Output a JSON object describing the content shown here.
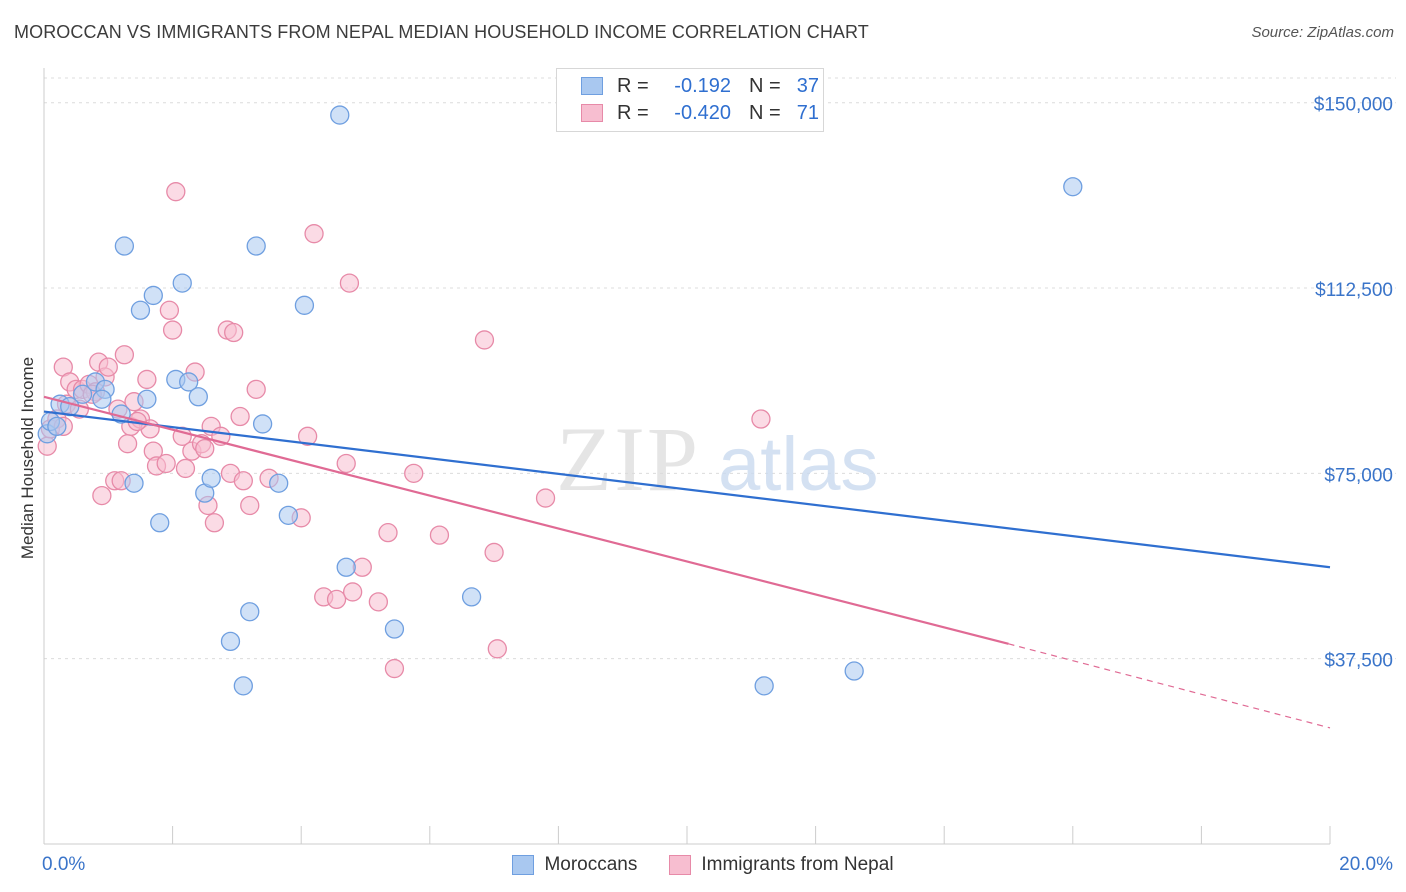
{
  "header": {
    "title": "MOROCCAN VS IMMIGRANTS FROM NEPAL MEDIAN HOUSEHOLD INCOME CORRELATION CHART",
    "source": "Source: ZipAtlas.com"
  },
  "watermark": {
    "part1": "ZIP",
    "part2": "atlas"
  },
  "legend_top": {
    "rows": [
      {
        "r_label": "R =",
        "r_value": "-0.192",
        "n_label": "N =",
        "n_value": "37",
        "color": "#a9c8f0",
        "stroke": "#6f9fe0"
      },
      {
        "r_label": "R =",
        "r_value": "-0.420",
        "n_label": "N =",
        "n_value": "71",
        "color": "#f7bed0",
        "stroke": "#e78aa8"
      }
    ]
  },
  "legend_bottom": {
    "items": [
      {
        "label": "Moroccans",
        "color": "#a9c8f0",
        "stroke": "#6f9fe0"
      },
      {
        "label": "Immigrants from Nepal",
        "color": "#f7bed0",
        "stroke": "#e78aa8"
      }
    ]
  },
  "chart_data": {
    "type": "scatter",
    "ylabel": "Median Household Income",
    "xlabel": "",
    "xlim": [
      0,
      20
    ],
    "ylim": [
      0,
      155000
    ],
    "x_tick_labels": [
      "0.0%",
      "20.0%"
    ],
    "y_ticks": [
      37500,
      75000,
      112500,
      150000
    ],
    "y_tick_labels": [
      "$37,500",
      "$75,000",
      "$112,500",
      "$150,000"
    ],
    "grid": "horizontal dashed",
    "legend_position": "top-center and bottom",
    "colors": {
      "moroccans": "#6f9fe0",
      "nepal": "#e78aa8",
      "moroccans_line": "#2f6fd0",
      "nepal_line": "#e06a94",
      "axis_label": "#3a74c9"
    },
    "series": [
      {
        "name": "Moroccans",
        "points": [
          [
            0.05,
            83000
          ],
          [
            0.1,
            85500
          ],
          [
            0.25,
            89000
          ],
          [
            0.4,
            88500
          ],
          [
            0.6,
            91000
          ],
          [
            0.8,
            93500
          ],
          [
            0.95,
            92000
          ],
          [
            1.2,
            87000
          ],
          [
            1.25,
            121000
          ],
          [
            1.4,
            73000
          ],
          [
            1.5,
            108000
          ],
          [
            1.6,
            90000
          ],
          [
            1.7,
            111000
          ],
          [
            1.8,
            65000
          ],
          [
            2.05,
            94000
          ],
          [
            2.15,
            113500
          ],
          [
            2.25,
            93500
          ],
          [
            2.4,
            90500
          ],
          [
            2.5,
            71000
          ],
          [
            2.6,
            74000
          ],
          [
            2.9,
            41000
          ],
          [
            3.1,
            32000
          ],
          [
            3.2,
            47000
          ],
          [
            3.3,
            121000
          ],
          [
            3.4,
            85000
          ],
          [
            3.65,
            73000
          ],
          [
            3.8,
            66500
          ],
          [
            4.05,
            109000
          ],
          [
            4.6,
            147500
          ],
          [
            4.7,
            56000
          ],
          [
            5.45,
            43500
          ],
          [
            6.65,
            50000
          ],
          [
            11.2,
            32000
          ],
          [
            12.6,
            35000
          ],
          [
            16.0,
            133000
          ],
          [
            0.2,
            84500
          ],
          [
            0.9,
            90000
          ]
        ]
      },
      {
        "name": "Immigrants from Nepal",
        "points": [
          [
            0.05,
            80500
          ],
          [
            0.1,
            84000
          ],
          [
            0.2,
            86000
          ],
          [
            0.3,
            84500
          ],
          [
            0.3,
            96500
          ],
          [
            0.35,
            89000
          ],
          [
            0.4,
            93500
          ],
          [
            0.5,
            92000
          ],
          [
            0.6,
            92000
          ],
          [
            0.7,
            93000
          ],
          [
            0.8,
            91500
          ],
          [
            0.85,
            97500
          ],
          [
            0.9,
            70500
          ],
          [
            0.95,
            94500
          ],
          [
            1.0,
            96500
          ],
          [
            1.1,
            73500
          ],
          [
            1.15,
            88000
          ],
          [
            1.2,
            73500
          ],
          [
            1.25,
            99000
          ],
          [
            1.3,
            81000
          ],
          [
            1.35,
            84500
          ],
          [
            1.4,
            89500
          ],
          [
            1.5,
            86000
          ],
          [
            1.6,
            94000
          ],
          [
            1.65,
            84000
          ],
          [
            1.7,
            79500
          ],
          [
            1.75,
            76500
          ],
          [
            1.9,
            77000
          ],
          [
            1.95,
            108000
          ],
          [
            2.0,
            104000
          ],
          [
            2.05,
            132000
          ],
          [
            2.15,
            82500
          ],
          [
            2.2,
            76000
          ],
          [
            2.3,
            79500
          ],
          [
            2.35,
            95500
          ],
          [
            2.45,
            81000
          ],
          [
            2.5,
            80000
          ],
          [
            2.55,
            68500
          ],
          [
            2.6,
            84500
          ],
          [
            2.65,
            65000
          ],
          [
            2.75,
            82500
          ],
          [
            2.85,
            104000
          ],
          [
            2.9,
            75000
          ],
          [
            2.95,
            103500
          ],
          [
            3.05,
            86500
          ],
          [
            3.1,
            73500
          ],
          [
            3.2,
            68500
          ],
          [
            3.3,
            92000
          ],
          [
            3.5,
            74000
          ],
          [
            4.0,
            66000
          ],
          [
            4.1,
            82500
          ],
          [
            4.2,
            123500
          ],
          [
            4.35,
            50000
          ],
          [
            4.55,
            49500
          ],
          [
            4.7,
            77000
          ],
          [
            4.75,
            113500
          ],
          [
            4.8,
            51000
          ],
          [
            4.95,
            56000
          ],
          [
            5.2,
            49000
          ],
          [
            5.35,
            63000
          ],
          [
            5.45,
            35500
          ],
          [
            5.75,
            75000
          ],
          [
            6.15,
            62500
          ],
          [
            6.85,
            102000
          ],
          [
            7.0,
            59000
          ],
          [
            7.05,
            39500
          ],
          [
            7.8,
            70000
          ],
          [
            11.15,
            86000
          ],
          [
            0.55,
            88000
          ],
          [
            1.45,
            85500
          ],
          [
            0.75,
            91000
          ]
        ]
      }
    ],
    "trend_lines": [
      {
        "series": "Moroccans",
        "x0": 0,
        "y0": 87500,
        "x1": 20,
        "y1": 56000,
        "style": "solid"
      },
      {
        "series": "Immigrants from Nepal",
        "x0": 0,
        "y0": 90500,
        "x1": 15.0,
        "y1": 40500,
        "style": "solid"
      },
      {
        "series": "Immigrants from Nepal",
        "x0": 15.0,
        "y0": 40500,
        "x1": 20,
        "y1": 23500,
        "style": "dashed"
      }
    ]
  }
}
